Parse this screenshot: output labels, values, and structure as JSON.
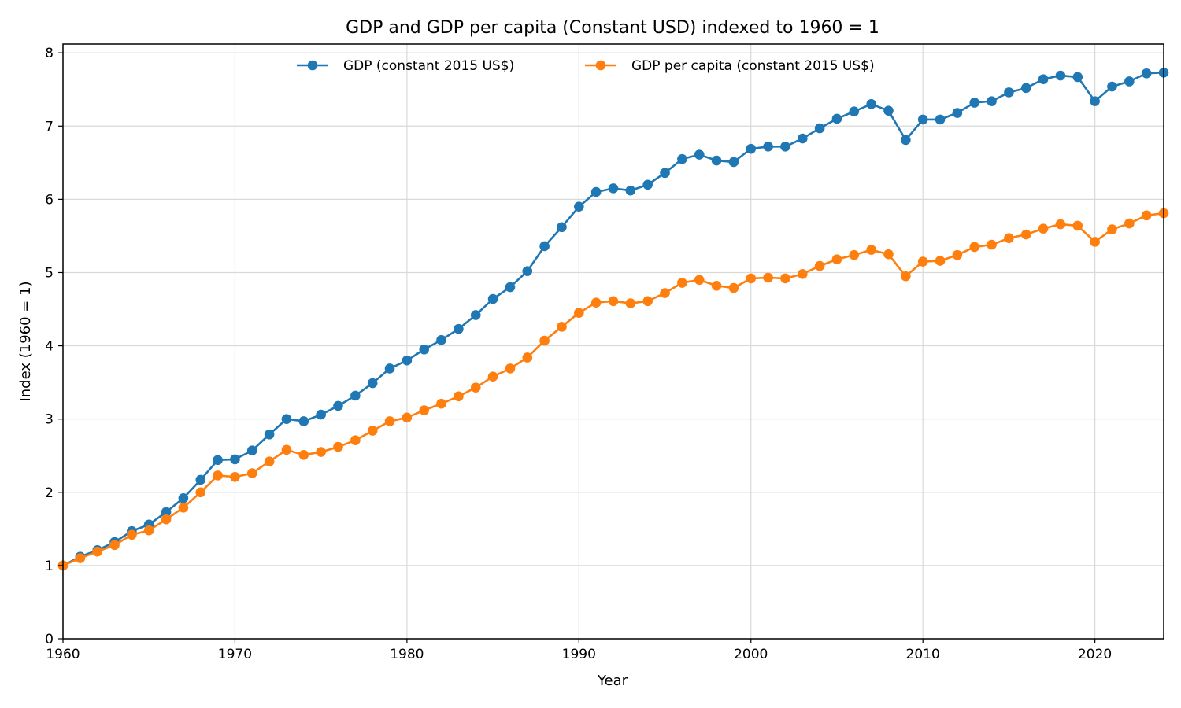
{
  "chart_data": {
    "type": "line",
    "title": "GDP and GDP per capita (Constant USD) indexed to 1960 = 1",
    "xlabel": "Year",
    "ylabel": "Index (1960 = 1)",
    "xlim": [
      1960,
      2024
    ],
    "ylim": [
      0,
      8.12
    ],
    "grid": true,
    "legend_position": "top-center",
    "x_ticks": [
      1960,
      1970,
      1980,
      1990,
      2000,
      2010,
      2020
    ],
    "y_ticks": [
      0,
      1,
      2,
      3,
      4,
      5,
      6,
      7,
      8
    ],
    "x": [
      1960,
      1961,
      1962,
      1963,
      1964,
      1965,
      1966,
      1967,
      1968,
      1969,
      1970,
      1971,
      1972,
      1973,
      1974,
      1975,
      1976,
      1977,
      1978,
      1979,
      1980,
      1981,
      1982,
      1983,
      1984,
      1985,
      1986,
      1987,
      1988,
      1989,
      1990,
      1991,
      1992,
      1993,
      1994,
      1995,
      1996,
      1997,
      1998,
      1999,
      2000,
      2001,
      2002,
      2003,
      2004,
      2005,
      2006,
      2007,
      2008,
      2009,
      2010,
      2011,
      2012,
      2013,
      2014,
      2015,
      2016,
      2017,
      2018,
      2019,
      2020,
      2021,
      2022,
      2023,
      2024
    ],
    "series": [
      {
        "name": "GDP (constant 2015 US$)",
        "color": "#1f77b4",
        "values": [
          1.0,
          1.12,
          1.21,
          1.32,
          1.47,
          1.56,
          1.73,
          1.92,
          2.17,
          2.44,
          2.45,
          2.57,
          2.79,
          3.0,
          2.97,
          3.06,
          3.18,
          3.32,
          3.49,
          3.69,
          3.8,
          3.95,
          4.08,
          4.23,
          4.42,
          4.64,
          4.8,
          5.02,
          5.36,
          5.62,
          5.9,
          6.1,
          6.15,
          6.12,
          6.2,
          6.36,
          6.55,
          6.61,
          6.53,
          6.51,
          6.69,
          6.72,
          6.72,
          6.83,
          6.97,
          7.1,
          7.2,
          7.3,
          7.21,
          6.81,
          7.09,
          7.09,
          7.18,
          7.32,
          7.34,
          7.46,
          7.52,
          7.64,
          7.69,
          7.67,
          7.34,
          7.54,
          7.61,
          7.72,
          7.73
        ]
      },
      {
        "name": "GDP per capita (constant 2015 US$)",
        "color": "#ff7f0e",
        "values": [
          1.0,
          1.1,
          1.19,
          1.28,
          1.42,
          1.48,
          1.63,
          1.79,
          2.0,
          2.23,
          2.21,
          2.26,
          2.42,
          2.58,
          2.51,
          2.55,
          2.62,
          2.71,
          2.84,
          2.97,
          3.02,
          3.12,
          3.21,
          3.31,
          3.43,
          3.58,
          3.69,
          3.84,
          4.07,
          4.26,
          4.45,
          4.59,
          4.61,
          4.58,
          4.61,
          4.72,
          4.86,
          4.9,
          4.82,
          4.79,
          4.92,
          4.93,
          4.92,
          4.98,
          5.09,
          5.18,
          5.24,
          5.31,
          5.25,
          4.95,
          5.15,
          5.16,
          5.24,
          5.35,
          5.38,
          5.47,
          5.52,
          5.6,
          5.66,
          5.64,
          5.42,
          5.59,
          5.67,
          5.78,
          5.81
        ]
      }
    ]
  }
}
